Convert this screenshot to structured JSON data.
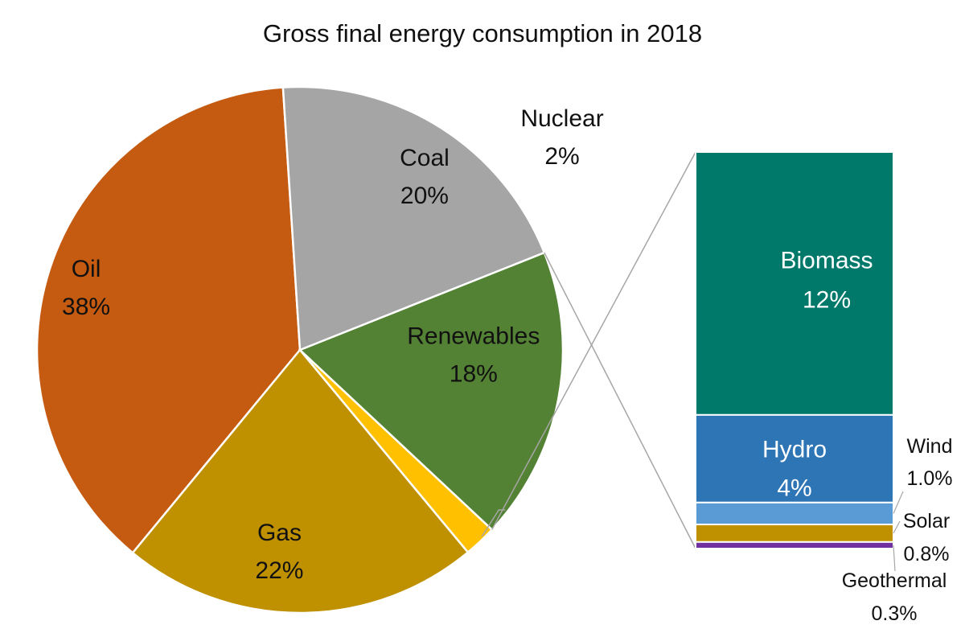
{
  "chart_data": {
    "type": "pie",
    "title": "Gross final energy consumption in 2018",
    "slices": [
      {
        "label": "Oil",
        "value": 38,
        "value_label": "38%",
        "color": "#C55A11"
      },
      {
        "label": "Gas",
        "value": 22,
        "value_label": "22%",
        "color": "#BF9000"
      },
      {
        "label": "Nuclear",
        "value": 2,
        "value_label": "2%",
        "color": "#FFC000"
      },
      {
        "label": "Renewables",
        "value": 18,
        "value_label": "18%",
        "color": "#548235"
      },
      {
        "label": "Coal",
        "value": 20,
        "value_label": "20%",
        "color": "#A5A5A5"
      }
    ],
    "breakdown": {
      "of": "Renewables",
      "type": "stacked-bar",
      "segments": [
        {
          "label": "Biomass",
          "value": 12,
          "value_label": "12%",
          "color": "#00796B"
        },
        {
          "label": "Hydro",
          "value": 4,
          "value_label": "4%",
          "color": "#2E75B6"
        },
        {
          "label": "Wind",
          "value": 1.0,
          "value_label": "1.0%",
          "color": "#5B9BD5"
        },
        {
          "label": "Solar",
          "value": 0.8,
          "value_label": "0.8%",
          "color": "#BF9000"
        },
        {
          "label": "Geothermal",
          "value": 0.3,
          "value_label": "0.3%",
          "color": "#7030A0"
        }
      ]
    }
  }
}
